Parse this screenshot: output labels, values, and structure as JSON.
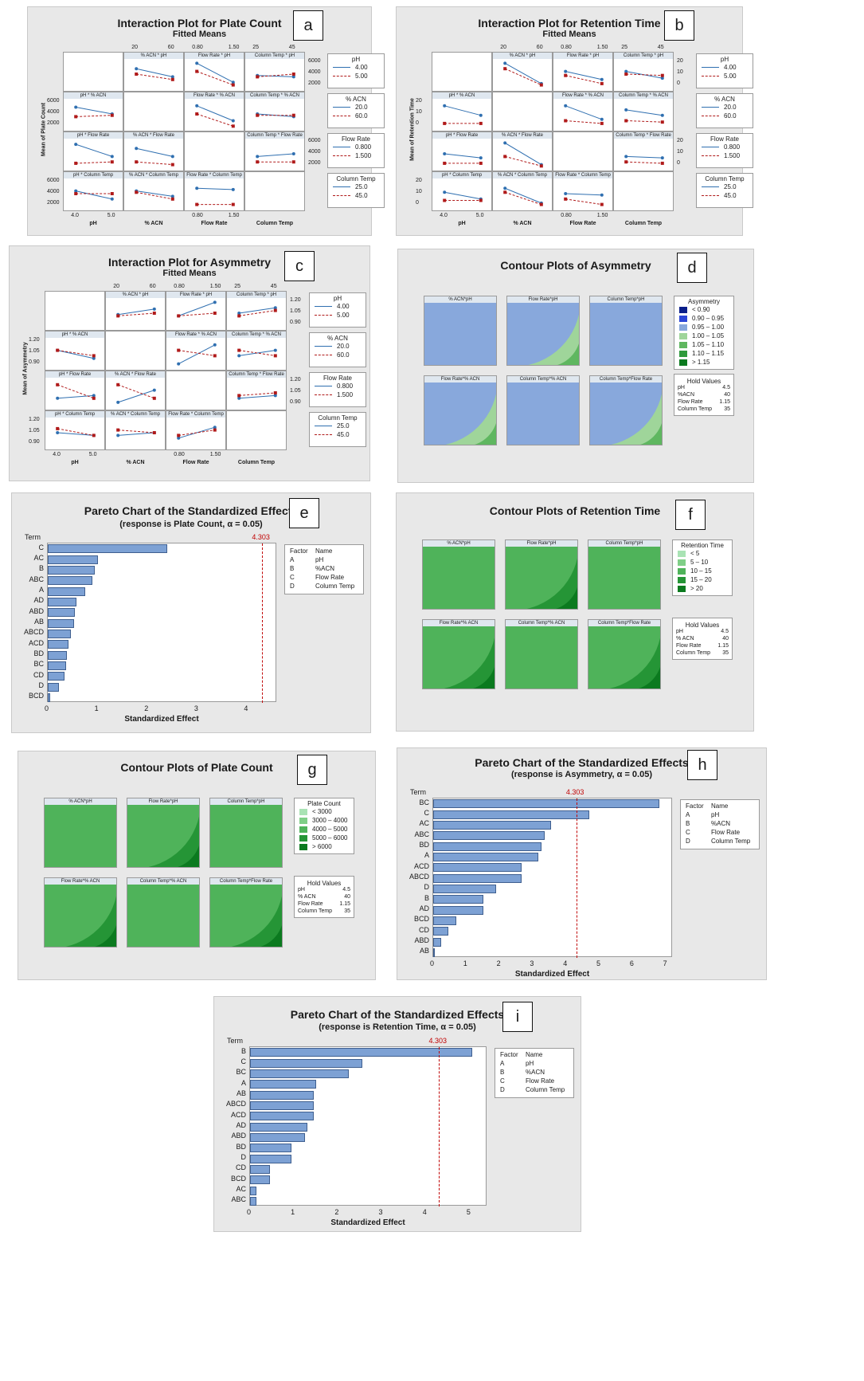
{
  "panels": {
    "a": {
      "letter": "a",
      "title": "Interaction Plot for Plate Count",
      "subtitle": "Fitted Means",
      "ylabel": "Mean of Plate Count",
      "col_labels": [
        "pH",
        "% ACN",
        "Flow Rate",
        "Column Temp"
      ],
      "top_ticks": [
        [
          "20",
          "60"
        ],
        [
          "0.80",
          "1.50"
        ],
        [
          "25",
          "45"
        ]
      ],
      "cell_titles": [
        "% ACN * pH",
        "Flow Rate * pH",
        "Column Temp * pH",
        "pH * % ACN",
        "Flow Rate * % ACN",
        "Column Temp * % ACN",
        "pH * Flow Rate",
        "% ACN * Flow Rate",
        "Column Temp * Flow Rate",
        "pH * Column Temp",
        "% ACN * Column Temp",
        "Flow Rate * Column Temp"
      ],
      "y_ticks": [
        "6000",
        "4000",
        "2000"
      ],
      "legends": [
        {
          "title": "pH",
          "items": [
            "4.00",
            "5.00"
          ]
        },
        {
          "title": "% ACN",
          "items": [
            "20.0",
            "60.0"
          ]
        },
        {
          "title": "Flow Rate",
          "items": [
            "0.800",
            "1.500"
          ]
        },
        {
          "title": "Column Temp",
          "items": [
            "25.0",
            "45.0"
          ]
        }
      ],
      "x_ticks": [
        [
          "4.0",
          "5.0"
        ],
        [
          "0.80",
          "1.50"
        ]
      ]
    },
    "b": {
      "letter": "b",
      "title": "Interaction Plot for Retention Time",
      "subtitle": "Fitted Means",
      "ylabel": "Mean of Retention Time",
      "col_labels": [
        "pH",
        "% ACN",
        "Flow Rate",
        "Column Temp"
      ],
      "top_ticks": [
        [
          "20",
          "60"
        ],
        [
          "0.80",
          "1.50"
        ],
        [
          "25",
          "45"
        ]
      ],
      "cell_titles": [
        "% ACN * pH",
        "Flow Rate * pH",
        "Column Temp * pH",
        "pH * % ACN",
        "Flow Rate * % ACN",
        "Column Temp * % ACN",
        "pH * Flow Rate",
        "% ACN * Flow Rate",
        "Column Temp * Flow Rate",
        "pH * Column Temp",
        "% ACN * Column Temp",
        "Flow Rate * Column Temp"
      ],
      "y_ticks": [
        "20",
        "10",
        "0"
      ],
      "legends": [
        {
          "title": "pH",
          "items": [
            "4.00",
            "5.00"
          ]
        },
        {
          "title": "% ACN",
          "items": [
            "20.0",
            "60.0"
          ]
        },
        {
          "title": "Flow Rate",
          "items": [
            "0.800",
            "1.500"
          ]
        },
        {
          "title": "Column Temp",
          "items": [
            "25.0",
            "45.0"
          ]
        }
      ],
      "x_ticks": [
        [
          "4.0",
          "5.0"
        ],
        [
          "0.80",
          "1.50"
        ]
      ]
    },
    "c": {
      "letter": "c",
      "title": "Interaction Plot for Asymmetry",
      "subtitle": "Fitted Means",
      "ylabel": "Mean of Asymmetry",
      "col_labels": [
        "pH",
        "% ACN",
        "Flow Rate",
        "Column Temp"
      ],
      "top_ticks": [
        [
          "20",
          "60"
        ],
        [
          "0.80",
          "1.50"
        ],
        [
          "25",
          "45"
        ]
      ],
      "cell_titles": [
        "% ACN * pH",
        "Flow Rate * pH",
        "Column Temp * pH",
        "pH * % ACN",
        "Flow Rate * % ACN",
        "Column Temp * % ACN",
        "pH * Flow Rate",
        "% ACN * Flow Rate",
        "Column Temp * Flow Rate",
        "pH * Column Temp",
        "% ACN * Column Temp",
        "Flow Rate * Column Temp"
      ],
      "y_ticks": [
        "1.20",
        "1.05",
        "0.90"
      ],
      "legends": [
        {
          "title": "pH",
          "items": [
            "4.00",
            "5.00"
          ]
        },
        {
          "title": "% ACN",
          "items": [
            "20.0",
            "60.0"
          ]
        },
        {
          "title": "Flow Rate",
          "items": [
            "0.800",
            "1.500"
          ]
        },
        {
          "title": "Column Temp",
          "items": [
            "25.0",
            "45.0"
          ]
        }
      ],
      "x_ticks": [
        [
          "4.0",
          "5.0"
        ],
        [
          "0.80",
          "1.50"
        ]
      ]
    },
    "d": {
      "letter": "d",
      "title": "Contour Plots of Asymmetry",
      "cell_titles": [
        "% ACN*pH",
        "Flow Rate*pH",
        "Column Temp*pH",
        "Flow Rate*% ACN",
        "Column Temp*% ACN",
        "Column Temp*Flow Rate"
      ],
      "legend_title": "Asymmetry",
      "levels": [
        {
          "label": "<  0.90",
          "color": "#0a1f8a"
        },
        {
          "label": "0.90  –  0.95",
          "color": "#2b46d6"
        },
        {
          "label": "0.95  –  1.00",
          "color": "#88a8dc"
        },
        {
          "label": "1.00  –  1.05",
          "color": "#9fd59a"
        },
        {
          "label": "1.05  –  1.10",
          "color": "#5fb760"
        },
        {
          "label": "1.10  –  1.15",
          "color": "#2f9a3c"
        },
        {
          "label": ">  1.15",
          "color": "#0b7a1f"
        }
      ],
      "hold": [
        [
          "pH",
          "4.5"
        ],
        [
          "%ACN",
          "40"
        ],
        [
          "Flow Rate",
          "1.15"
        ],
        [
          "Column Temp",
          "35"
        ]
      ]
    },
    "f": {
      "letter": "f",
      "title": "Contour Plots of Retention Time",
      "cell_titles": [
        "% ACN*pH",
        "Flow Rate*pH",
        "Column Temp*pH",
        "Flow Rate*% ACN",
        "Column Temp*% ACN",
        "Column Temp*Flow Rate"
      ],
      "legend_title": "Retention Time",
      "levels": [
        {
          "label": "<  5",
          "color": "#a9e3b4"
        },
        {
          "label": "5  –  10",
          "color": "#7fcf87"
        },
        {
          "label": "10  –  15",
          "color": "#4fb35a"
        },
        {
          "label": "15  –  20",
          "color": "#259536"
        },
        {
          "label": ">  20",
          "color": "#0b7a1f"
        }
      ],
      "hold": [
        [
          "pH",
          "4.5"
        ],
        [
          "% ACN",
          "40"
        ],
        [
          "Flow Rate",
          "1.15"
        ],
        [
          "Column Temp",
          "35"
        ]
      ]
    },
    "g": {
      "letter": "g",
      "title": "Contour Plots of Plate Count",
      "cell_titles": [
        "% ACN*pH",
        "Flow Rate*pH",
        "Column Temp*pH",
        "Flow Rate*% ACN",
        "Column Temp*% ACN",
        "Column Temp*Flow Rate"
      ],
      "legend_title": "Plate Count",
      "levels": [
        {
          "label": "<  3000",
          "color": "#a9e3b4"
        },
        {
          "label": "3000  –  4000",
          "color": "#7fcf87"
        },
        {
          "label": "4000  –  5000",
          "color": "#4fb35a"
        },
        {
          "label": "5000  –  6000",
          "color": "#259536"
        },
        {
          "label": ">  6000",
          "color": "#0b7a1f"
        }
      ],
      "hold": [
        [
          "pH",
          "4.5"
        ],
        [
          "% ACN",
          "40"
        ],
        [
          "Flow Rate",
          "1.15"
        ],
        [
          "Column Temp",
          "35"
        ]
      ]
    },
    "e": {
      "letter": "e",
      "title": "Pareto Chart of the Standardized Effects",
      "subtitle": "(response is Plate Count, α = 0.05)"
    },
    "h": {
      "letter": "h",
      "title": "Pareto Chart of the Standardized Effects",
      "subtitle": "(response is Asymmetry, α = 0.05)"
    },
    "i": {
      "letter": "i",
      "title": "Pareto Chart of the Standardized Effects",
      "subtitle": "(response is Retention Time, α = 0.05)"
    }
  },
  "pareto_common": {
    "term_label": "Term",
    "xlabel": "Standardized Effect",
    "ref_label": "4.303",
    "factor_head": [
      "Factor",
      "Name"
    ],
    "factors": [
      [
        "A",
        "pH"
      ],
      [
        "B",
        "%ACN"
      ],
      [
        "C",
        "Flow Rate"
      ],
      [
        "D",
        "Column Temp"
      ]
    ]
  },
  "chart_data": [
    {
      "type": "bar",
      "id": "e",
      "title": "Pareto Chart of the Standardized Effects",
      "subtitle": "(response is Plate Count, α = 0.05)",
      "categories": [
        "C",
        "AC",
        "B",
        "ABC",
        "A",
        "AD",
        "ABD",
        "AB",
        "ABCD",
        "ACD",
        "BD",
        "BC",
        "CD",
        "D",
        "BCD"
      ],
      "values": [
        2.4,
        1.0,
        0.95,
        0.9,
        0.75,
        0.58,
        0.55,
        0.52,
        0.47,
        0.42,
        0.38,
        0.36,
        0.34,
        0.22,
        0.05
      ],
      "reference": 4.303,
      "xlim": [
        0,
        4.6
      ],
      "xticks": [
        0,
        1,
        2,
        3,
        4
      ],
      "xlabel": "Standardized Effect",
      "ylabel": "Term"
    },
    {
      "type": "bar",
      "id": "h",
      "title": "Pareto Chart of the Standardized Effects",
      "subtitle": "(response is Asymmetry, α = 0.05)",
      "categories": [
        "BC",
        "C",
        "AC",
        "ABC",
        "BD",
        "A",
        "ACD",
        "ABCD",
        "D",
        "B",
        "AD",
        "BCD",
        "CD",
        "ABD",
        "AB"
      ],
      "values": [
        6.8,
        4.7,
        3.55,
        3.35,
        3.25,
        3.15,
        2.65,
        2.65,
        1.9,
        1.5,
        1.5,
        0.7,
        0.45,
        0.25,
        0.05
      ],
      "reference": 4.303,
      "xlim": [
        0,
        7.2
      ],
      "xticks": [
        0,
        1,
        2,
        3,
        4,
        5,
        6,
        7
      ],
      "xlabel": "Standardized Effect",
      "ylabel": "Term"
    },
    {
      "type": "bar",
      "id": "i",
      "title": "Pareto Chart of the Standardized Effects",
      "subtitle": "(response is Retention Time, α = 0.05)",
      "categories": [
        "B",
        "C",
        "BC",
        "A",
        "AB",
        "ABCD",
        "ACD",
        "AD",
        "ABD",
        "BD",
        "D",
        "CD",
        "BCD",
        "AC",
        "ABC"
      ],
      "values": [
        5.05,
        2.55,
        2.25,
        1.5,
        1.45,
        1.45,
        1.45,
        1.3,
        1.25,
        0.95,
        0.95,
        0.45,
        0.45,
        0.15,
        0.15
      ],
      "reference": 4.303,
      "xlim": [
        0,
        5.4
      ],
      "xticks": [
        0,
        1,
        2,
        3,
        4,
        5
      ],
      "xlabel": "Standardized Effect",
      "ylabel": "Term"
    }
  ]
}
